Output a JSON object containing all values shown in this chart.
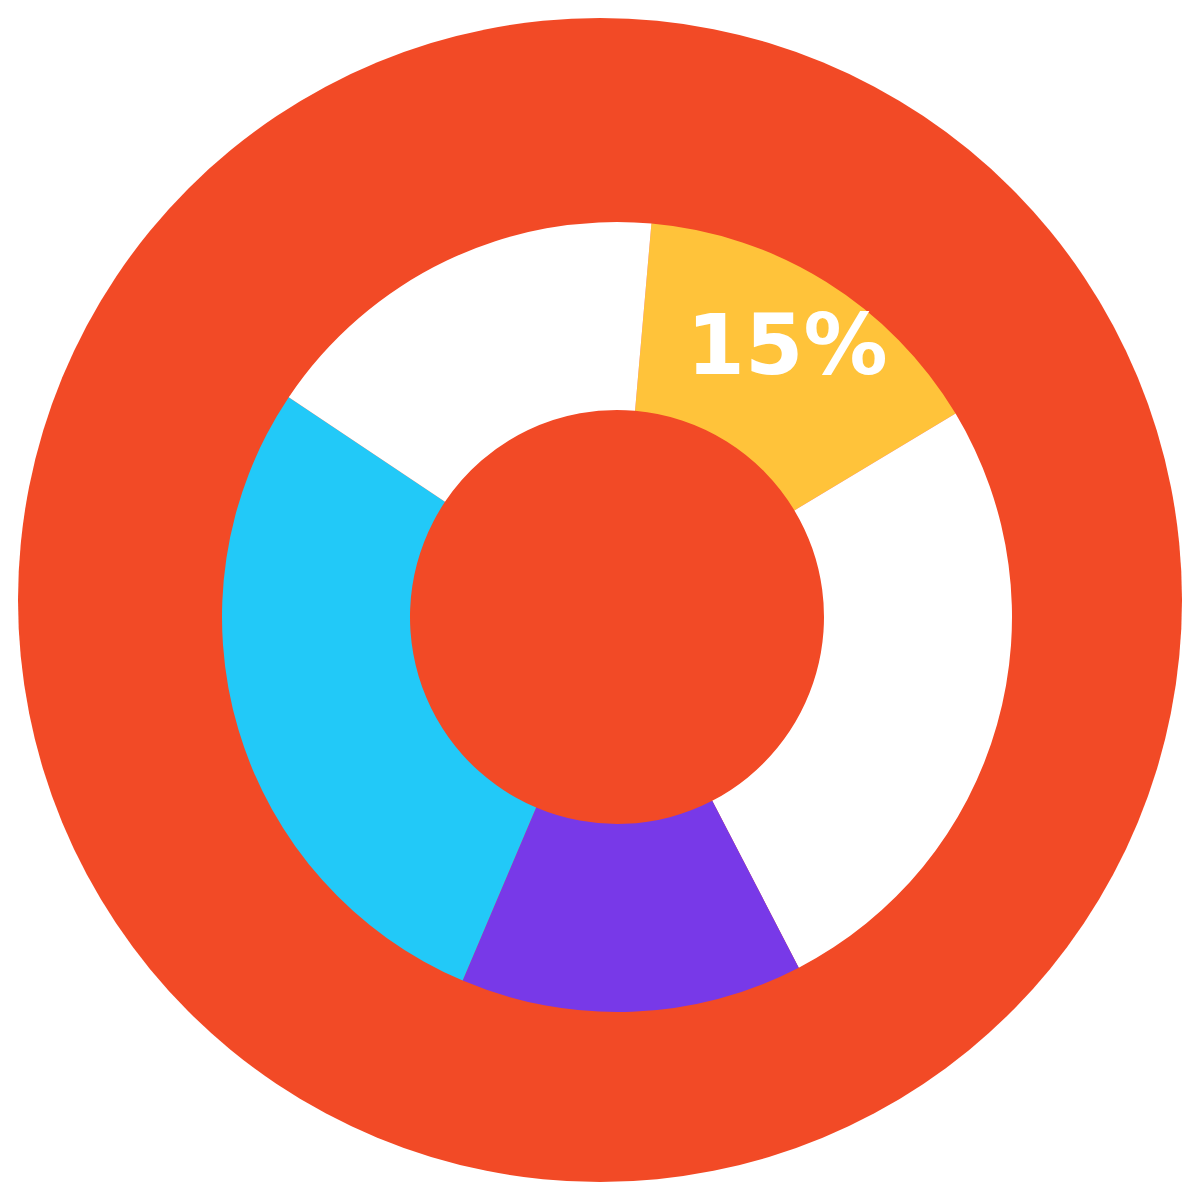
{
  "chart_data": {
    "type": "donut",
    "categories": [
      null,
      null,
      null,
      null,
      null
    ],
    "values": [
      15,
      26,
      14,
      28,
      17
    ],
    "colors": [
      "#ffc33a",
      "#ffffff",
      "#7839e8",
      "#22c9f8",
      "#ffffff"
    ],
    "value_labels": [
      "15%",
      null,
      null,
      null,
      null
    ],
    "legend": false
  }
}
